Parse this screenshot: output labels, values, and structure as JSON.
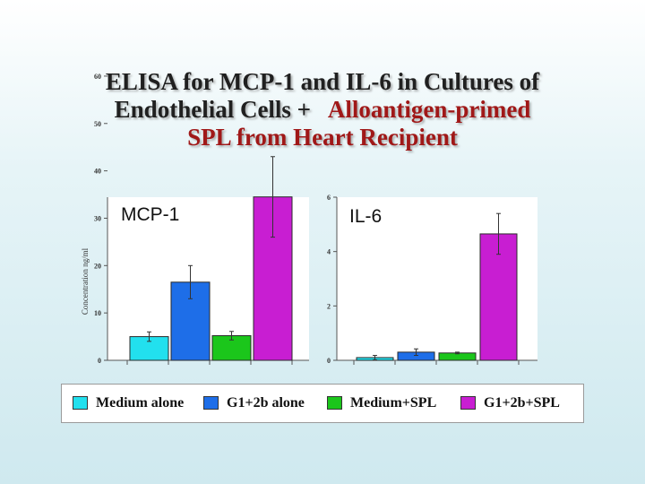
{
  "title": {
    "line1": "ELISA for MCP-1 and IL-6 in Cultures of",
    "line2a": "Endothelial Cells +",
    "line2b": "Alloantigen-primed",
    "line3": "SPL from Heart Recipient"
  },
  "colors": {
    "title_accent": "#a01818",
    "medium_alone": "#22e0ee",
    "g1_2b_alone": "#1e6ee8",
    "medium_spl": "#1bc61b",
    "g1_2b_spl": "#c81ed2"
  },
  "legend": [
    {
      "label": "Medium alone",
      "color": "#22e0ee"
    },
    {
      "label": "G1+2b alone",
      "color": "#1e6ee8"
    },
    {
      "label": "Medium+SPL",
      "color": "#1bc61b"
    },
    {
      "label": "G1+2b+SPL",
      "color": "#c81ed2"
    }
  ],
  "chart_data": [
    {
      "type": "bar",
      "title": "MCP-1",
      "ylabel": "Concentration ng/ml",
      "ylim": [
        0,
        65
      ],
      "yticks": [
        0,
        10,
        20,
        30,
        40,
        50,
        60
      ],
      "categories": [
        "Medium alone",
        "G1+2b alone",
        "Medium+SPL",
        "G1+2b+SPL"
      ],
      "values": [
        5.0,
        16.5,
        5.2,
        34.5
      ],
      "errors": [
        1.0,
        3.5,
        0.9,
        8.5
      ],
      "legend_position": "bottom"
    },
    {
      "type": "bar",
      "title": "IL-6",
      "ylabel": "",
      "ylim": [
        0,
        6
      ],
      "yticks": [
        0,
        2,
        4,
        6
      ],
      "categories": [
        "Medium alone",
        "G1+2b alone",
        "Medium+SPL",
        "G1+2b+SPL"
      ],
      "values": [
        0.1,
        0.3,
        0.27,
        4.65
      ],
      "errors": [
        0.08,
        0.12,
        0.03,
        0.75
      ],
      "legend_position": "bottom"
    }
  ]
}
